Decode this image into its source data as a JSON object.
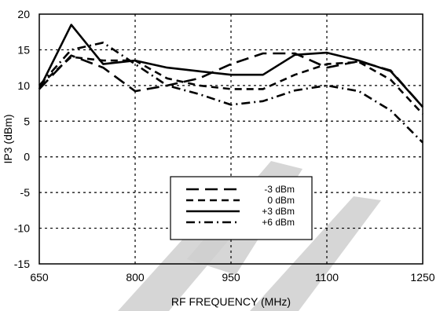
{
  "chart_data": {
    "type": "line",
    "xlabel": "RF FREQUENCY (MHz)",
    "ylabel": "IP3 (dBm)",
    "xlim": [
      650,
      1250
    ],
    "ylim": [
      -15,
      20
    ],
    "xticks": [
      650,
      800,
      950,
      1100,
      1250
    ],
    "yticks": [
      20,
      15,
      10,
      5,
      0,
      -5,
      -10,
      -15
    ],
    "grid": true,
    "legend_position": "bottom-center",
    "series": [
      {
        "name": "-3 dBm",
        "style": "long-dash",
        "x": [
          650,
          700,
          750,
          800,
          850,
          900,
          950,
          1000,
          1050,
          1100,
          1150,
          1200,
          1250
        ],
        "y": [
          9.5,
          14.2,
          12.5,
          9.2,
          10.0,
          11.0,
          13.0,
          14.5,
          14.5,
          12.5,
          13.4,
          12.1,
          7.0
        ]
      },
      {
        "name": "0 dBm",
        "style": "short-dash",
        "x": [
          650,
          700,
          750,
          800,
          850,
          900,
          950,
          1000,
          1050,
          1100,
          1150,
          1200,
          1250
        ],
        "y": [
          10.0,
          14.0,
          13.5,
          13.5,
          11.0,
          10.0,
          9.5,
          9.5,
          11.5,
          13.0,
          13.3,
          10.8,
          6.0
        ]
      },
      {
        "name": "+3 dBm",
        "style": "solid",
        "x": [
          650,
          700,
          750,
          800,
          850,
          900,
          950,
          1000,
          1050,
          1100,
          1150,
          1200,
          1250
        ],
        "y": [
          9.5,
          18.5,
          13.0,
          13.5,
          12.5,
          12.0,
          11.5,
          11.5,
          14.3,
          14.6,
          13.5,
          12.0,
          7.0
        ]
      },
      {
        "name": "+6 dBm",
        "style": "dash-dot",
        "x": [
          650,
          700,
          750,
          800,
          850,
          900,
          950,
          1000,
          1050,
          1100,
          1150,
          1200,
          1250
        ],
        "y": [
          10.0,
          15.0,
          16.0,
          13.0,
          10.0,
          8.8,
          7.3,
          7.8,
          9.3,
          10.0,
          9.2,
          6.5,
          2.0
        ]
      }
    ],
    "legend_entries": [
      "-3 dBm",
      "0 dBm",
      "+3 dBm",
      "+6 dBm"
    ]
  }
}
